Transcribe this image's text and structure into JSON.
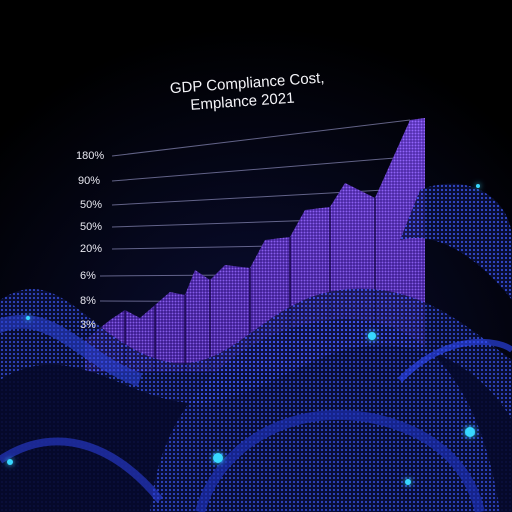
{
  "title": {
    "line1": "GDP Compliance Cost,",
    "line2": "Emplance 2021"
  },
  "axis_labels": [
    "180%",
    "90%",
    "50%",
    "50%",
    "20%",
    "6%",
    "8%",
    "3%"
  ]
}
